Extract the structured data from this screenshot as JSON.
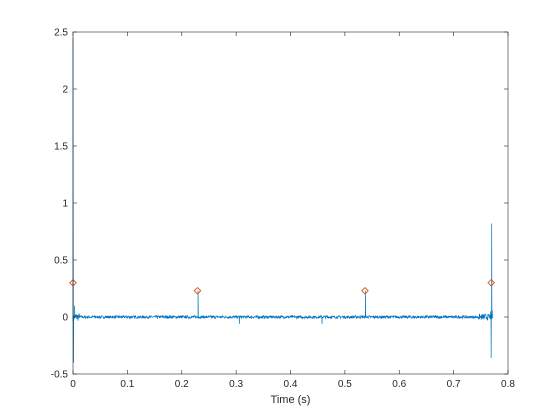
{
  "chart_data": {
    "type": "line",
    "title": "",
    "xlabel": "Time (s)",
    "ylabel": "",
    "xlim": [
      0,
      0.8
    ],
    "ylim": [
      -0.5,
      2.5
    ],
    "xticks": [
      0,
      0.1,
      0.2,
      0.3,
      0.4,
      0.5,
      0.6,
      0.7,
      0.8
    ],
    "xtick_labels": [
      "0",
      "0.1",
      "0.2",
      "0.3",
      "0.4",
      "0.5",
      "0.6",
      "0.7",
      "0.8"
    ],
    "yticks": [
      -0.5,
      0,
      0.5,
      1,
      1.5,
      2,
      2.5
    ],
    "ytick_labels": [
      "-0.5",
      "0",
      "0.5",
      "1",
      "1.5",
      "2",
      "2.5"
    ],
    "grid": false,
    "box": true,
    "series": [
      {
        "color": "#0072BD",
        "baseline": 0.0,
        "noise_amplitude": 0.012,
        "x_end": 0.772,
        "features": [
          {
            "x": 0.0,
            "y": 2.45
          },
          {
            "x": 0.001,
            "y": -0.4
          },
          {
            "x": 0.003,
            "y": 0.1
          },
          {
            "x": 0.23,
            "y": 0.23
          },
          {
            "x": 0.306,
            "y": -0.06
          },
          {
            "x": 0.458,
            "y": -0.06
          },
          {
            "x": 0.538,
            "y": 0.23
          },
          {
            "x": 0.768,
            "y": 0.05
          },
          {
            "x": 0.769,
            "y": -0.36
          },
          {
            "x": 0.77,
            "y": 0.82
          },
          {
            "x": 0.771,
            "y": 0.06
          }
        ]
      },
      {
        "type": "scatter",
        "marker": "diamond",
        "color": "#D95319",
        "x": [
          0.0,
          0.229,
          0.537,
          0.769
        ],
        "y": [
          0.3,
          0.23,
          0.23,
          0.3
        ]
      }
    ]
  }
}
